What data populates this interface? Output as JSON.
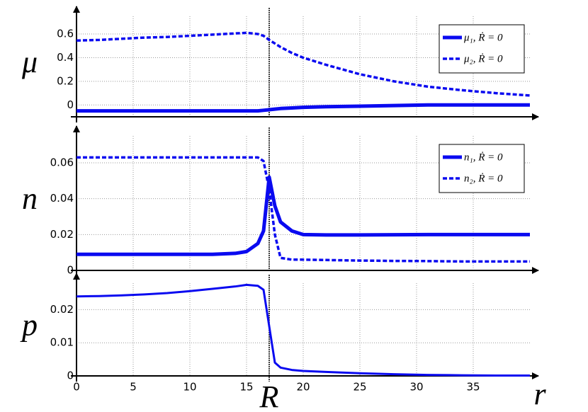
{
  "chart_data": [
    {
      "type": "line",
      "ylabel": "μ",
      "x": [
        0,
        2,
        4,
        6,
        8,
        10,
        12,
        14,
        15,
        16,
        16.5,
        17,
        17.5,
        18,
        19,
        20,
        22,
        25,
        28,
        31,
        34,
        37,
        40
      ],
      "series": [
        {
          "name": "μ₁, Ṙ = 0",
          "color": "#0a0af0",
          "dash": false,
          "width": 5,
          "values": [
            -0.05,
            -0.05,
            -0.05,
            -0.05,
            -0.05,
            -0.05,
            -0.05,
            -0.05,
            -0.05,
            -0.05,
            -0.045,
            -0.04,
            -0.035,
            -0.03,
            -0.025,
            -0.02,
            -0.015,
            -0.01,
            -0.005,
            0,
            0,
            0,
            0
          ]
        },
        {
          "name": "μ₂, Ṙ = 0",
          "color": "#0a0af0",
          "dash": true,
          "width": 3.5,
          "values": [
            0.545,
            0.55,
            0.56,
            0.57,
            0.575,
            0.585,
            0.595,
            0.605,
            0.61,
            0.6,
            0.585,
            0.55,
            0.52,
            0.49,
            0.44,
            0.4,
            0.34,
            0.26,
            0.2,
            0.155,
            0.125,
            0.1,
            0.08
          ]
        }
      ],
      "xlim": [
        0,
        40
      ],
      "xticks": [
        0,
        5,
        10,
        15,
        20,
        25,
        30,
        35
      ],
      "show_xtick_labels": false,
      "ylim": [
        -0.1,
        0.75
      ],
      "yticks": [
        0,
        0.2,
        0.4,
        0.6
      ],
      "grid": true,
      "vline_x": 17,
      "legend": "upper right"
    },
    {
      "type": "line",
      "ylabel": "n",
      "x": [
        0,
        2,
        4,
        6,
        8,
        10,
        12,
        14,
        15,
        16,
        16.5,
        17,
        17.5,
        18,
        19,
        20,
        22,
        25,
        28,
        31,
        34,
        37,
        40
      ],
      "series": [
        {
          "name": "n₁, Ṙ = 0",
          "color": "#0a0af0",
          "dash": false,
          "width": 5,
          "values": [
            0.009,
            0.009,
            0.009,
            0.009,
            0.009,
            0.009,
            0.009,
            0.0095,
            0.0105,
            0.015,
            0.022,
            0.052,
            0.036,
            0.027,
            0.022,
            0.02,
            0.0198,
            0.0198,
            0.0199,
            0.02,
            0.02,
            0.02,
            0.02
          ]
        },
        {
          "name": "n₂, Ṙ = 0",
          "color": "#0a0af0",
          "dash": true,
          "width": 3.5,
          "values": [
            0.063,
            0.063,
            0.063,
            0.063,
            0.063,
            0.063,
            0.063,
            0.063,
            0.063,
            0.063,
            0.061,
            0.045,
            0.02,
            0.007,
            0.006,
            0.006,
            0.0058,
            0.0055,
            0.0053,
            0.0052,
            0.005,
            0.005,
            0.005
          ]
        }
      ],
      "xlim": [
        0,
        40
      ],
      "xticks": [
        0,
        5,
        10,
        15,
        20,
        25,
        30,
        35
      ],
      "show_xtick_labels": false,
      "ylim": [
        0,
        0.075
      ],
      "yticks": [
        0,
        0.02,
        0.04,
        0.06
      ],
      "grid": true,
      "vline_x": 17,
      "legend": "upper right"
    },
    {
      "type": "line",
      "ylabel": "p",
      "xlabel": "r",
      "annotation": "R",
      "x": [
        0,
        2,
        4,
        6,
        8,
        10,
        12,
        14,
        15,
        16,
        16.5,
        17,
        17.5,
        18,
        19,
        20,
        22,
        25,
        28,
        31,
        34,
        37,
        40
      ],
      "series": [
        {
          "color": "#0a0af0",
          "dash": false,
          "width": 3,
          "values": [
            0.024,
            0.0241,
            0.0243,
            0.0246,
            0.025,
            0.0256,
            0.0263,
            0.027,
            0.0275,
            0.0272,
            0.026,
            0.015,
            0.004,
            0.0025,
            0.0018,
            0.0015,
            0.0012,
            0.0008,
            0.0005,
            0.0003,
            0.0002,
            0.0001,
            0.0001
          ]
        }
      ],
      "xlim": [
        0,
        40
      ],
      "xticks": [
        0,
        5,
        10,
        15,
        20,
        25,
        30,
        35
      ],
      "show_xtick_labels": true,
      "ylim": [
        0,
        0.028
      ],
      "yticks": [
        0,
        0.01,
        0.02
      ],
      "grid": true,
      "vline_x": 17
    }
  ]
}
